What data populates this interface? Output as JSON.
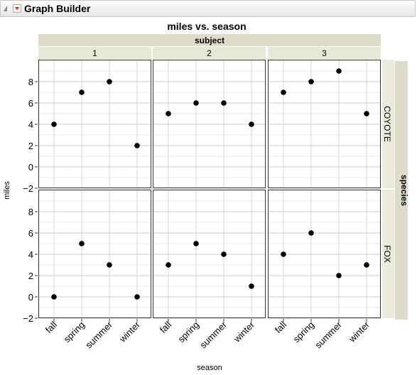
{
  "window": {
    "title": "Graph Builder"
  },
  "chart_data": {
    "type": "scatter",
    "title": "miles vs. season",
    "xlabel": "season",
    "ylabel": "miles",
    "categories": [
      "fall",
      "spring",
      "summer",
      "winter"
    ],
    "ylim": [
      -2,
      10
    ],
    "yticks": [
      -2,
      0,
      2,
      4,
      6,
      8
    ],
    "grid": true,
    "column_group": {
      "title": "subject",
      "levels": [
        "1",
        "2",
        "3"
      ]
    },
    "row_group": {
      "title": "species",
      "levels": [
        "COYOTE",
        "FOX"
      ]
    },
    "panels": [
      {
        "subject": "1",
        "species": "COYOTE",
        "values": [
          4,
          7,
          8,
          2
        ]
      },
      {
        "subject": "2",
        "species": "COYOTE",
        "values": [
          5,
          6,
          6,
          4
        ]
      },
      {
        "subject": "3",
        "species": "COYOTE",
        "values": [
          7,
          8,
          9,
          5
        ]
      },
      {
        "subject": "1",
        "species": "FOX",
        "values": [
          0,
          5,
          3,
          0
        ]
      },
      {
        "subject": "2",
        "species": "FOX",
        "values": [
          3,
          5,
          4,
          1
        ]
      },
      {
        "subject": "3",
        "species": "FOX",
        "values": [
          4,
          6,
          2,
          3
        ]
      }
    ]
  }
}
